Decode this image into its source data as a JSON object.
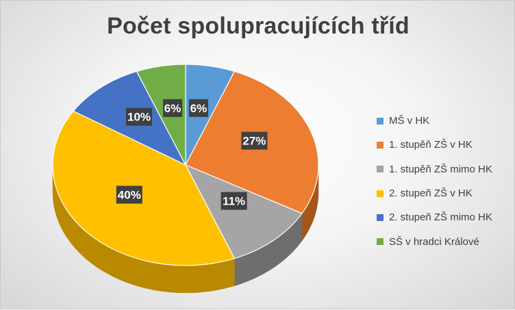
{
  "chart_data": {
    "type": "pie",
    "title": "Počet spolupracujících tříd",
    "legend_position": "right",
    "categories": [
      "MŠ v HK",
      "1. stupěň ZŠ v HK",
      "1. stupěň ZŠ mimo HK",
      "2. stupeň ZŠ v HK",
      "2. stupeň ZŠ mimo HK",
      "SŠ v hradci Králové"
    ],
    "values": [
      6,
      27,
      11,
      40,
      10,
      6
    ],
    "labels": [
      "6%",
      "27%",
      "11%",
      "40%",
      "10%",
      "6%"
    ],
    "colors": [
      "#5B9BD5",
      "#ED7D31",
      "#A5A5A5",
      "#FFC000",
      "#4472C4",
      "#70AD47"
    ],
    "side_colors": [
      "#3E6E9A",
      "#A65618",
      "#6E6E6E",
      "#B98A00",
      "#2C4E8C",
      "#4E7A31"
    ]
  }
}
